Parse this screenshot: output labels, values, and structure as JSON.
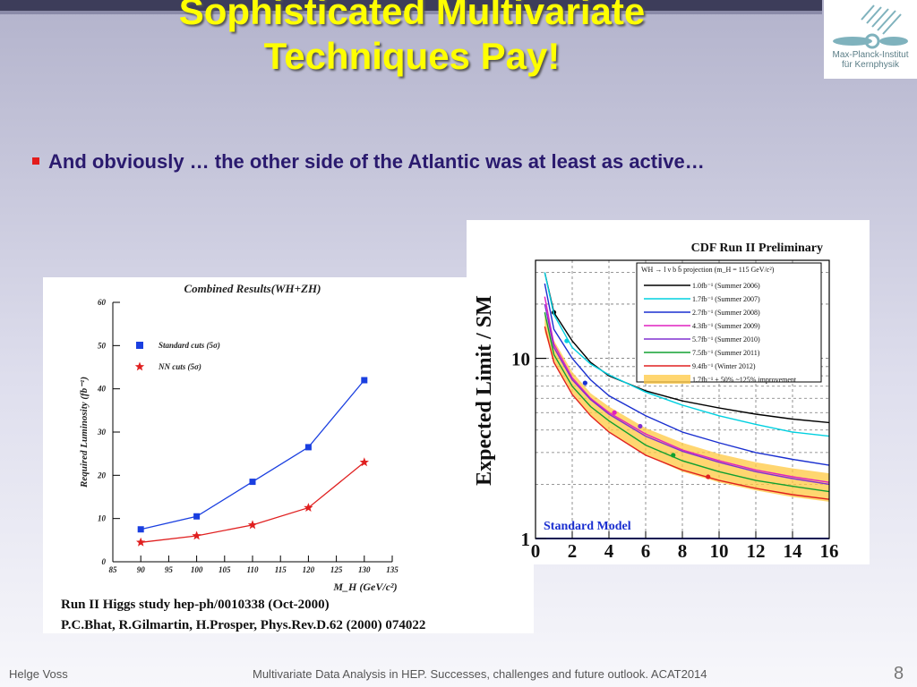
{
  "slide": {
    "title": "Sophisticated Multivariate Techniques Pay!",
    "bullet": "And obviously … the other side of the Atlantic was at least as active…",
    "logo_lines": [
      "Max-Planck-Institut",
      "für Kernphysik"
    ],
    "footer_author": "Helge Voss",
    "footer_text": "Multivariate Data Analysis in HEP. Successes, challenges and future outlook.   ACAT2014",
    "page": "8"
  },
  "colors": {
    "title": "#ffff00",
    "bullet_text": "#2a1a6e",
    "bullet_marker": "#e31c1c"
  },
  "chart_data": [
    {
      "type": "line",
      "title": "Combined Results(WH+ZH)",
      "xlabel": "M_H (GeV/c²)",
      "ylabel": "Required Luminosity (fb⁻¹)",
      "xlim": [
        85,
        135
      ],
      "ylim": [
        0,
        60
      ],
      "xticks": [
        85,
        90,
        95,
        100,
        105,
        110,
        115,
        120,
        125,
        130,
        135
      ],
      "yticks": [
        0,
        10,
        20,
        30,
        40,
        50,
        60
      ],
      "x": [
        90,
        100,
        110,
        120,
        130
      ],
      "series": [
        {
          "name": "Standard cuts (5σ)",
          "marker": "square",
          "color": "#1a3fe0",
          "values": [
            7.5,
            10.5,
            18.5,
            26.5,
            42
          ]
        },
        {
          "name": "NN cuts (5σ)",
          "marker": "star",
          "color": "#e02020",
          "values": [
            4.5,
            6,
            8.5,
            12.5,
            23
          ]
        }
      ],
      "caption": [
        "Run II Higgs study  hep-ph/0010338 (Oct-2000)",
        "P.C.Bhat, R.Gilmartin, H.Prosper, Phys.Rev.D.62 (2000) 074022"
      ]
    },
    {
      "type": "line",
      "title": "CDF Run II Preliminary",
      "ylabel": "Expected Limit / SM",
      "log_y": true,
      "xlim": [
        0,
        16
      ],
      "ylim": [
        1,
        35
      ],
      "xticks": [
        0,
        2,
        4,
        6,
        8,
        10,
        12,
        14,
        16
      ],
      "yticks": [
        1,
        10
      ],
      "legend_header": "WH → l ν b b̄ projection (m_H = 115 GeV/c²)",
      "annotation": "Standard Model",
      "grid": true,
      "x": [
        0.5,
        1,
        2,
        3,
        4,
        6,
        8,
        10,
        12,
        14,
        16
      ],
      "band": {
        "name": "1.7fb⁻¹ + 50% ~125% improvement",
        "color": "#ffc840",
        "lower": [
          14,
          9.6,
          6.4,
          4.8,
          3.9,
          2.9,
          2.35,
          2.05,
          1.85,
          1.7,
          1.6
        ],
        "upper": [
          18,
          12.6,
          8.4,
          6.4,
          5.4,
          4.1,
          3.4,
          2.95,
          2.65,
          2.45,
          2.3
        ]
      },
      "series": [
        {
          "name": "1.0fb⁻¹ (Summer 2006)",
          "color": "#000000",
          "values": [
            30,
            18,
            12.5,
            9.5,
            8,
            6.6,
            5.8,
            5.3,
            4.9,
            4.6,
            4.4
          ],
          "point": {
            "x": 1,
            "y": 18
          }
        },
        {
          "name": "1.7fb⁻¹ (Summer 2007)",
          "color": "#00d0e0",
          "values": [
            30,
            17.5,
            11.5,
            9.3,
            8.1,
            6.5,
            5.5,
            4.8,
            4.3,
            3.9,
            3.7
          ],
          "point": {
            "x": 1.7,
            "y": 12.5
          }
        },
        {
          "name": "2.7fb⁻¹ (Summer 2008)",
          "color": "#1a2fd0",
          "values": [
            26,
            14.5,
            10,
            7.6,
            6.2,
            4.8,
            3.9,
            3.4,
            3,
            2.75,
            2.55
          ],
          "point": {
            "x": 2.7,
            "y": 7.3
          }
        },
        {
          "name": "4.3fb⁻¹ (Summer 2009)",
          "color": "#e020c0",
          "values": [
            22,
            12,
            7.8,
            6,
            5,
            3.8,
            3.1,
            2.7,
            2.4,
            2.2,
            2.05
          ],
          "point": {
            "x": 4.3,
            "y": 5
          }
        },
        {
          "name": "5.7fb⁻¹ (Summer 2010)",
          "color": "#8030d0",
          "values": [
            20,
            11.5,
            7.6,
            5.9,
            4.9,
            3.7,
            3.05,
            2.65,
            2.35,
            2.15,
            2.0
          ],
          "point": {
            "x": 5.7,
            "y": 4.2
          }
        },
        {
          "name": "7.5fb⁻¹ (Summer 2011)",
          "color": "#10a030",
          "values": [
            18,
            10.5,
            7,
            5.4,
            4.5,
            3.3,
            2.7,
            2.35,
            2.1,
            1.95,
            1.82
          ],
          "point": {
            "x": 7.5,
            "y": 2.9
          }
        },
        {
          "name": "9.4fb⁻¹ (Winter 2012)",
          "color": "#e02020",
          "values": [
            15,
            9.5,
            6.3,
            4.8,
            3.9,
            2.9,
            2.4,
            2.1,
            1.9,
            1.75,
            1.65
          ],
          "point": {
            "x": 9.4,
            "y": 2.2
          }
        }
      ],
      "sm_line": 1
    }
  ]
}
